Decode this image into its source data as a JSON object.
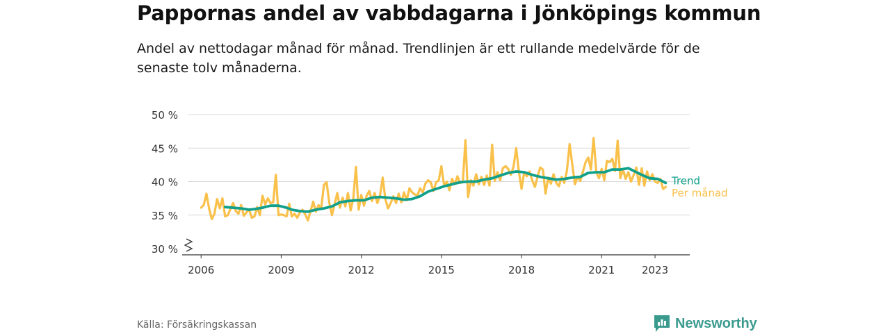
{
  "header": {
    "title": "Pappornas andel av vabbdagarna i Jönköpings kommun",
    "subtitle": "Andel av nettodagar månad för månad. Trendlinjen är ett rullande medelvärde för de senaste tolv månaderna."
  },
  "footer": {
    "source": "Källa: Försäkringskassan",
    "brand": "Newsworthy"
  },
  "colors": {
    "monthly": "#f9c04a",
    "trend": "#12a08b",
    "grid": "#d9d9d9",
    "axis": "#333333",
    "brand": "#3a9a8e"
  },
  "chart_data": {
    "type": "line",
    "x_unit": "year",
    "ylim": [
      30,
      50
    ],
    "xlim": [
      2005.5,
      2024.3
    ],
    "y_ticks": [
      {
        "value": 30,
        "label": "30 %"
      },
      {
        "value": 35,
        "label": "35 %"
      },
      {
        "value": 40,
        "label": "40 %"
      },
      {
        "value": 45,
        "label": "45 %"
      },
      {
        "value": 50,
        "label": "50 %"
      }
    ],
    "x_ticks": [
      {
        "value": 2006,
        "label": "2006"
      },
      {
        "value": 2009,
        "label": "2009"
      },
      {
        "value": 2012,
        "label": "2012"
      },
      {
        "value": 2015,
        "label": "2015"
      },
      {
        "value": 2018,
        "label": "2018"
      },
      {
        "value": 2021,
        "label": "2021"
      },
      {
        "value": 2023,
        "label": "2023"
      }
    ],
    "axis_break": true,
    "grid": true,
    "series": [
      {
        "name": "Per månad",
        "points": [
          [
            2006.0,
            36.1
          ],
          [
            2006.1,
            36.5
          ],
          [
            2006.2,
            38.2
          ],
          [
            2006.3,
            36.0
          ],
          [
            2006.4,
            34.4
          ],
          [
            2006.5,
            35.2
          ],
          [
            2006.6,
            37.4
          ],
          [
            2006.7,
            36.0
          ],
          [
            2006.8,
            37.5
          ],
          [
            2006.9,
            34.8
          ],
          [
            2007.0,
            35.0
          ],
          [
            2007.2,
            36.8
          ],
          [
            2007.3,
            35.6
          ],
          [
            2007.4,
            35.2
          ],
          [
            2007.5,
            36.5
          ],
          [
            2007.6,
            34.9
          ],
          [
            2007.7,
            35.4
          ],
          [
            2007.8,
            35.8
          ],
          [
            2007.9,
            34.6
          ],
          [
            2008.0,
            34.8
          ],
          [
            2008.1,
            36.2
          ],
          [
            2008.2,
            35.0
          ],
          [
            2008.3,
            37.9
          ],
          [
            2008.4,
            36.6
          ],
          [
            2008.5,
            37.5
          ],
          [
            2008.6,
            36.8
          ],
          [
            2008.7,
            36.9
          ],
          [
            2008.8,
            41.0
          ],
          [
            2008.9,
            35.0
          ],
          [
            2009.0,
            35.1
          ],
          [
            2009.1,
            35.0
          ],
          [
            2009.2,
            34.8
          ],
          [
            2009.3,
            36.7
          ],
          [
            2009.4,
            34.8
          ],
          [
            2009.5,
            35.2
          ],
          [
            2009.6,
            34.6
          ],
          [
            2009.7,
            35.4
          ],
          [
            2009.8,
            35.8
          ],
          [
            2009.9,
            35.1
          ],
          [
            2010.0,
            34.2
          ],
          [
            2010.1,
            35.6
          ],
          [
            2010.2,
            37.0
          ],
          [
            2010.3,
            35.5
          ],
          [
            2010.4,
            36.5
          ],
          [
            2010.5,
            36.0
          ],
          [
            2010.6,
            39.5
          ],
          [
            2010.7,
            39.9
          ],
          [
            2010.8,
            36.9
          ],
          [
            2010.9,
            35.0
          ],
          [
            2011.0,
            36.6
          ],
          [
            2011.1,
            38.3
          ],
          [
            2011.2,
            36.1
          ],
          [
            2011.3,
            37.6
          ],
          [
            2011.4,
            36.3
          ],
          [
            2011.5,
            38.3
          ],
          [
            2011.6,
            35.7
          ],
          [
            2011.7,
            37.5
          ],
          [
            2011.8,
            42.2
          ],
          [
            2011.9,
            35.8
          ],
          [
            2012.0,
            38.0
          ],
          [
            2012.1,
            36.4
          ],
          [
            2012.2,
            37.9
          ],
          [
            2012.3,
            38.6
          ],
          [
            2012.4,
            37.1
          ],
          [
            2012.5,
            38.3
          ],
          [
            2012.6,
            36.8
          ],
          [
            2012.7,
            37.9
          ],
          [
            2012.8,
            40.6
          ],
          [
            2012.9,
            37.4
          ],
          [
            2013.0,
            36.0
          ],
          [
            2013.1,
            36.8
          ],
          [
            2013.2,
            37.8
          ],
          [
            2013.3,
            36.8
          ],
          [
            2013.4,
            38.2
          ],
          [
            2013.5,
            36.9
          ],
          [
            2013.6,
            38.4
          ],
          [
            2013.7,
            37.2
          ],
          [
            2013.8,
            39.0
          ],
          [
            2013.9,
            38.4
          ],
          [
            2014.0,
            38.1
          ],
          [
            2014.1,
            37.9
          ],
          [
            2014.2,
            39.0
          ],
          [
            2014.3,
            38.4
          ],
          [
            2014.4,
            39.7
          ],
          [
            2014.5,
            40.2
          ],
          [
            2014.6,
            39.9
          ],
          [
            2014.7,
            38.6
          ],
          [
            2014.8,
            39.9
          ],
          [
            2014.9,
            40.2
          ],
          [
            2015.0,
            42.3
          ],
          [
            2015.1,
            39.4
          ],
          [
            2015.2,
            40.0
          ],
          [
            2015.3,
            38.7
          ],
          [
            2015.4,
            40.4
          ],
          [
            2015.5,
            39.6
          ],
          [
            2015.6,
            40.8
          ],
          [
            2015.7,
            39.8
          ],
          [
            2015.8,
            39.9
          ],
          [
            2015.9,
            46.2
          ],
          [
            2016.0,
            37.7
          ],
          [
            2016.1,
            40.2
          ],
          [
            2016.2,
            39.4
          ],
          [
            2016.3,
            41.1
          ],
          [
            2016.4,
            39.6
          ],
          [
            2016.5,
            40.7
          ],
          [
            2016.6,
            39.5
          ],
          [
            2016.7,
            40.9
          ],
          [
            2016.8,
            39.4
          ],
          [
            2016.9,
            45.5
          ],
          [
            2017.0,
            40.1
          ],
          [
            2017.1,
            41.4
          ],
          [
            2017.2,
            40.2
          ],
          [
            2017.3,
            42.0
          ],
          [
            2017.4,
            42.3
          ],
          [
            2017.5,
            41.9
          ],
          [
            2017.6,
            41.0
          ],
          [
            2017.7,
            42.2
          ],
          [
            2017.8,
            45.0
          ],
          [
            2017.9,
            41.5
          ],
          [
            2018.0,
            38.9
          ],
          [
            2018.1,
            41.4
          ],
          [
            2018.2,
            40.8
          ],
          [
            2018.3,
            41.5
          ],
          [
            2018.4,
            40.2
          ],
          [
            2018.5,
            39.2
          ],
          [
            2018.6,
            40.7
          ],
          [
            2018.7,
            42.1
          ],
          [
            2018.8,
            41.8
          ],
          [
            2018.9,
            38.2
          ],
          [
            2019.0,
            40.6
          ],
          [
            2019.1,
            39.7
          ],
          [
            2019.2,
            41.1
          ],
          [
            2019.3,
            39.8
          ],
          [
            2019.4,
            39.3
          ],
          [
            2019.5,
            40.7
          ],
          [
            2019.6,
            39.8
          ],
          [
            2019.7,
            41.6
          ],
          [
            2019.8,
            45.6
          ],
          [
            2019.9,
            42.6
          ],
          [
            2020.0,
            39.6
          ],
          [
            2020.1,
            40.7
          ],
          [
            2020.2,
            40.1
          ],
          [
            2020.3,
            41.5
          ],
          [
            2020.4,
            42.9
          ],
          [
            2020.5,
            43.6
          ],
          [
            2020.6,
            41.8
          ],
          [
            2020.7,
            46.5
          ],
          [
            2020.8,
            41.4
          ],
          [
            2020.9,
            40.5
          ],
          [
            2021.0,
            41.9
          ],
          [
            2021.1,
            40.2
          ],
          [
            2021.2,
            43.1
          ],
          [
            2021.3,
            42.9
          ],
          [
            2021.4,
            43.4
          ],
          [
            2021.5,
            41.6
          ],
          [
            2021.6,
            46.1
          ],
          [
            2021.7,
            40.5
          ],
          [
            2021.8,
            41.8
          ],
          [
            2021.9,
            40.4
          ],
          [
            2022.0,
            41.4
          ],
          [
            2022.1,
            40.0
          ],
          [
            2022.2,
            41.0
          ],
          [
            2022.3,
            42.1
          ],
          [
            2022.4,
            39.5
          ],
          [
            2022.5,
            42.0
          ],
          [
            2022.6,
            39.4
          ],
          [
            2022.7,
            41.5
          ],
          [
            2022.8,
            40.2
          ],
          [
            2022.9,
            41.1
          ],
          [
            2023.0,
            40.0
          ],
          [
            2023.1,
            39.8
          ],
          [
            2023.2,
            40.4
          ],
          [
            2023.3,
            38.9
          ],
          [
            2023.4,
            39.2
          ]
        ]
      },
      {
        "name": "Trend",
        "points": [
          [
            2006.9,
            36.2
          ],
          [
            2007.2,
            36.1
          ],
          [
            2007.5,
            36.0
          ],
          [
            2007.8,
            35.8
          ],
          [
            2008.0,
            35.9
          ],
          [
            2008.3,
            36.1
          ],
          [
            2008.6,
            36.4
          ],
          [
            2008.9,
            36.4
          ],
          [
            2009.2,
            36.1
          ],
          [
            2009.4,
            35.8
          ],
          [
            2009.7,
            35.6
          ],
          [
            2010.0,
            35.5
          ],
          [
            2010.3,
            35.8
          ],
          [
            2010.6,
            36.0
          ],
          [
            2010.9,
            36.3
          ],
          [
            2011.2,
            36.9
          ],
          [
            2011.5,
            37.1
          ],
          [
            2011.8,
            37.2
          ],
          [
            2012.1,
            37.2
          ],
          [
            2012.4,
            37.6
          ],
          [
            2012.7,
            37.7
          ],
          [
            2013.0,
            37.6
          ],
          [
            2013.3,
            37.5
          ],
          [
            2013.6,
            37.3
          ],
          [
            2013.9,
            37.4
          ],
          [
            2014.2,
            37.8
          ],
          [
            2014.5,
            38.5
          ],
          [
            2014.8,
            38.9
          ],
          [
            2015.1,
            39.3
          ],
          [
            2015.4,
            39.6
          ],
          [
            2015.7,
            39.9
          ],
          [
            2016.0,
            40.0
          ],
          [
            2016.3,
            40.0
          ],
          [
            2016.6,
            40.3
          ],
          [
            2016.9,
            40.5
          ],
          [
            2017.2,
            40.9
          ],
          [
            2017.5,
            41.3
          ],
          [
            2017.8,
            41.5
          ],
          [
            2018.1,
            41.4
          ],
          [
            2018.4,
            41.0
          ],
          [
            2018.7,
            40.7
          ],
          [
            2019.0,
            40.5
          ],
          [
            2019.3,
            40.3
          ],
          [
            2019.6,
            40.4
          ],
          [
            2019.9,
            40.6
          ],
          [
            2020.2,
            40.7
          ],
          [
            2020.5,
            41.3
          ],
          [
            2020.8,
            41.4
          ],
          [
            2021.1,
            41.4
          ],
          [
            2021.4,
            41.8
          ],
          [
            2021.7,
            41.8
          ],
          [
            2022.0,
            42.0
          ],
          [
            2022.2,
            41.6
          ],
          [
            2022.5,
            41.0
          ],
          [
            2022.8,
            40.5
          ],
          [
            2023.1,
            40.4
          ],
          [
            2023.4,
            39.8
          ]
        ]
      }
    ]
  }
}
